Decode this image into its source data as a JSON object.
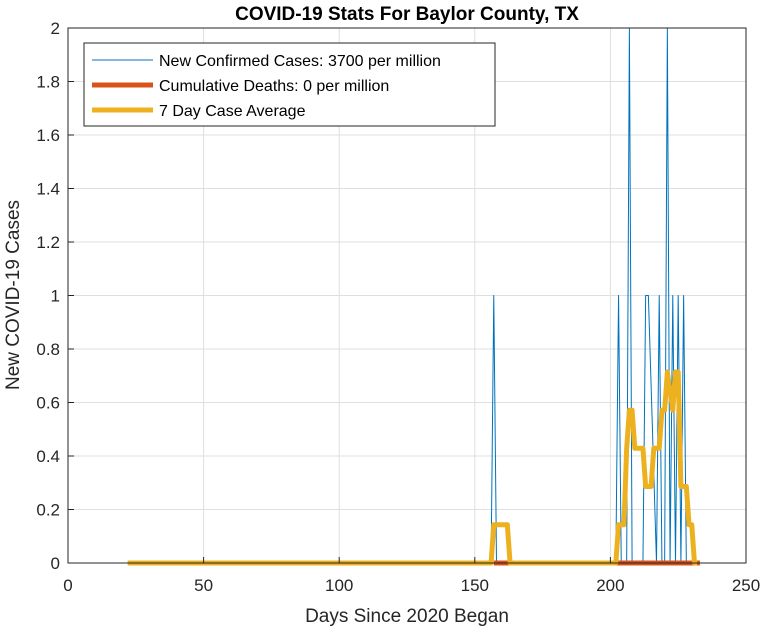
{
  "chart_data": {
    "type": "line",
    "title": "COVID-19 Stats For Baylor County, TX",
    "xlabel": "Days Since 2020 Began",
    "ylabel": "New COVID-19 Cases",
    "xlim": [
      0,
      250
    ],
    "ylim": [
      0,
      2
    ],
    "xticks": [
      "0",
      "50",
      "100",
      "150",
      "200",
      "250"
    ],
    "yticks": [
      "0",
      "0.2",
      "0.4",
      "0.6",
      "0.8",
      "1",
      "1.2",
      "1.4",
      "1.6",
      "1.8",
      "2"
    ],
    "grid": true,
    "legend_position": "top-left",
    "series": [
      {
        "name": "New Confirmed Cases: 3700 per million",
        "color": "#0072BD",
        "x": [
          22,
          156,
          157,
          158,
          202,
          203,
          204,
          206,
          207,
          208,
          212,
          213,
          214,
          217,
          218,
          219,
          220,
          221,
          222,
          223,
          224,
          225,
          226,
          227,
          228,
          232
        ],
        "y": [
          0,
          0,
          1,
          0,
          0,
          1,
          0,
          0,
          2,
          0,
          0,
          1,
          1,
          0,
          1,
          0,
          0,
          2,
          0,
          1,
          0,
          1,
          0,
          1,
          0,
          0
        ]
      },
      {
        "name": "Cumulative Deaths: 0 per million",
        "color": "#D95319",
        "x": [
          157,
          163,
          203,
          233
        ],
        "y": [
          0,
          0,
          0,
          0
        ]
      },
      {
        "name": "7 Day Case Average",
        "color": "#EDB120",
        "x": [
          22,
          155,
          156,
          157,
          162,
          163,
          164,
          201,
          202,
          203,
          205,
          206,
          207,
          208,
          209,
          210,
          212,
          213,
          214,
          215,
          216,
          217,
          218,
          219,
          220,
          221,
          223,
          224,
          225,
          226,
          227,
          228,
          229,
          230,
          231,
          232
        ],
        "y": [
          0,
          0,
          0,
          0.143,
          0.143,
          0,
          0,
          0,
          0,
          0.143,
          0.143,
          0.429,
          0.571,
          0.571,
          0.429,
          0.429,
          0.429,
          0.286,
          0.286,
          0.286,
          0.429,
          0.429,
          0.429,
          0.571,
          0.571,
          0.714,
          0.571,
          0.714,
          0.714,
          0.286,
          0.286,
          0.286,
          0.143,
          0.143,
          0,
          0
        ]
      }
    ]
  }
}
